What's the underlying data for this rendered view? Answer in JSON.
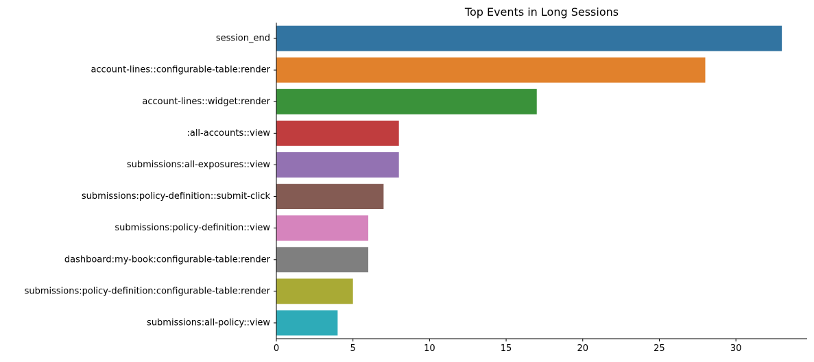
{
  "chart_data": {
    "type": "bar",
    "orientation": "horizontal",
    "title": "Top Events in Long Sessions",
    "xlabel": "",
    "ylabel": "",
    "xlim": [
      0,
      34.65
    ],
    "xticks": [
      0,
      5,
      10,
      15,
      20,
      25,
      30
    ],
    "grid": false,
    "categories": [
      "session_end",
      "account-lines::configurable-table:render",
      "account-lines::widget:render",
      ":all-accounts::view",
      "submissions:all-exposures::view",
      "submissions:policy-definition::submit-click",
      "submissions:policy-definition::view",
      "dashboard:my-book:configurable-table:render",
      "submissions:policy-definition:configurable-table:render",
      "submissions:all-policy::view"
    ],
    "values": [
      33,
      28,
      17,
      8,
      8,
      7,
      6,
      6,
      5,
      4
    ],
    "colors": [
      "#3274a1",
      "#e1812c",
      "#3a923a",
      "#c03d3e",
      "#9372b2",
      "#845b53",
      "#d684bd",
      "#7f7f7f",
      "#a9aa35",
      "#2eabb8"
    ]
  }
}
